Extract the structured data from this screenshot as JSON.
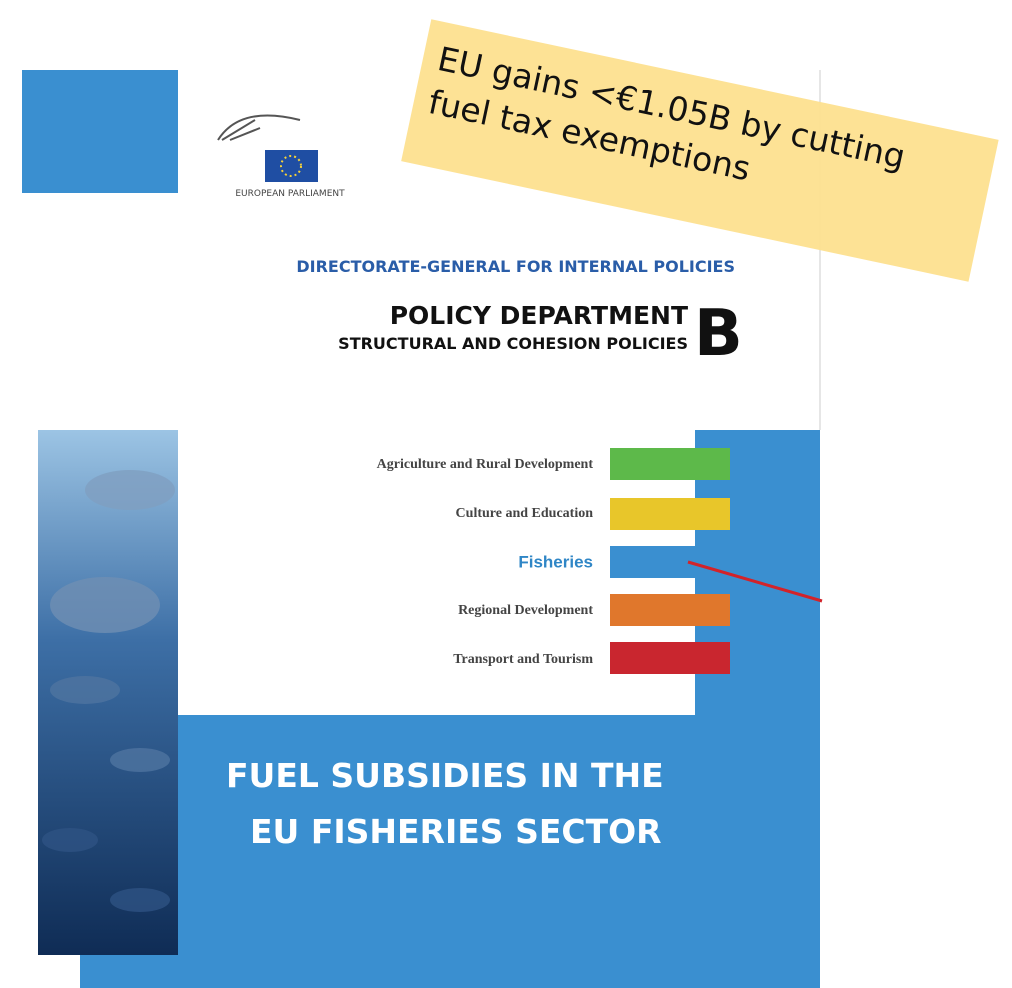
{
  "logo": {
    "label": "EUROPEAN PARLIAMENT"
  },
  "header": {
    "directorate": "DIRECTORATE-GENERAL FOR INTERNAL POLICIES",
    "department": "POLICY DEPARTMENT",
    "subtitle": "STRUCTURAL AND COHESION POLICIES",
    "letter": "B"
  },
  "topics": [
    "Agriculture and Rural Development",
    "Culture and Education",
    "Fisheries",
    "Regional Development",
    "Transport and Tourism"
  ],
  "title": [
    "FUEL SUBSIDIES IN THE",
    "EU FISHERIES SECTOR"
  ],
  "note": [
    "EU gains <€1.05B by cutting",
    "fuel tax exemptions"
  ]
}
